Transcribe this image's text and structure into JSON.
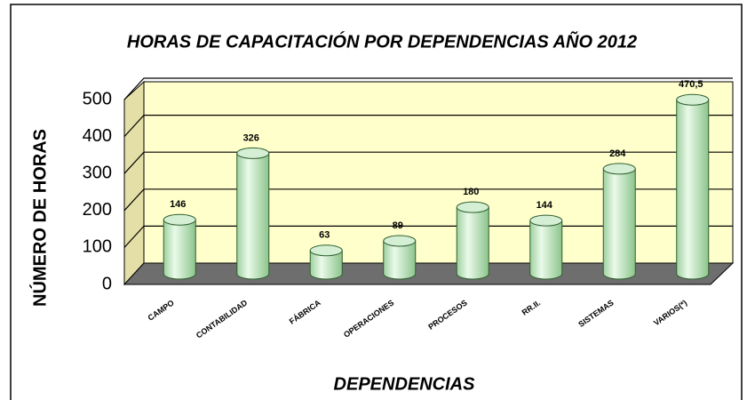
{
  "chart_data": {
    "type": "bar",
    "title": "HORAS DE CAPACITACIÓN POR DEPENDENCIAS AÑO 2012",
    "x_label": "DEPENDENCIAS",
    "y_label": "NÚMERO DE HORAS",
    "categories": [
      "CAMPO",
      "CONTABILIDAD",
      "FÁBRICA",
      "OPERACIONES",
      "PROCESOS",
      "RR.II.",
      "SISTEMAS",
      "VARIOS(*)"
    ],
    "values": [
      146,
      326,
      63,
      89,
      180,
      144,
      284,
      470.5
    ],
    "value_labels": [
      "146",
      "326",
      "63",
      "89",
      "180",
      "144",
      "284",
      "470,5"
    ],
    "color": "#b8e2b8",
    "ylim": [
      0,
      500
    ],
    "yticks": [
      0,
      100,
      200,
      300,
      400,
      500
    ],
    "grid": true
  }
}
